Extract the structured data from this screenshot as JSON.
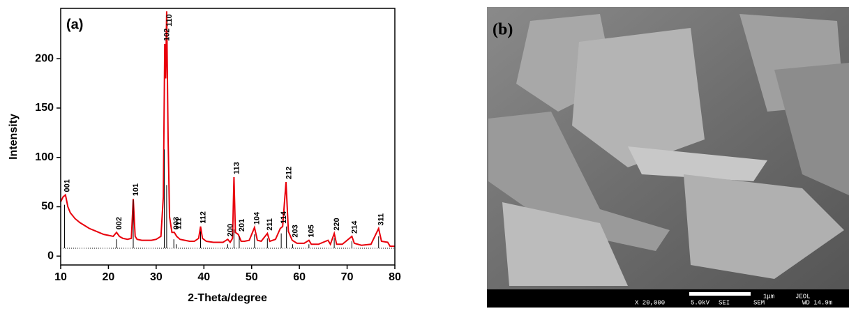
{
  "chart_data": {
    "type": "line",
    "panel_label": "(a)",
    "xlabel": "2-Theta/degree",
    "ylabel": "Intensity",
    "xlim": [
      10,
      80
    ],
    "ylim": [
      -9,
      251
    ],
    "xticks": [
      10,
      20,
      30,
      40,
      50,
      60,
      70,
      80
    ],
    "yticks": [
      0,
      50,
      100,
      150,
      200
    ],
    "x": [
      10,
      10.5,
      11,
      11.5,
      12,
      13,
      14,
      15,
      16,
      17,
      18,
      19,
      20,
      21,
      21.7,
      22.3,
      23,
      24,
      24.8,
      25.2,
      25.6,
      26,
      27,
      28,
      29,
      30,
      31,
      31.5,
      31.8,
      32.0,
      32.2,
      32.5,
      32.8,
      33.3,
      33.8,
      34.3,
      35,
      36,
      37,
      38,
      38.9,
      39.3,
      39.7,
      40.5,
      42,
      43,
      44,
      45,
      45.5,
      46,
      46.3,
      46.6,
      47.2,
      47.8,
      48.5,
      49.5,
      50.6,
      51.2,
      52,
      53.3,
      53.8,
      55,
      56,
      56.5,
      57.2,
      57.7,
      58.5,
      59.5,
      61,
      62,
      62.5,
      64,
      66,
      66.5,
      67.3,
      67.8,
      69,
      71,
      71.5,
      73,
      75,
      76.6,
      77.2,
      78.5,
      79,
      80
    ],
    "series": [
      {
        "color": "#e8000b",
        "values": [
          55,
          60,
          62,
          50,
          44,
          38,
          34,
          31,
          28,
          26,
          24,
          22,
          21,
          20,
          24,
          20,
          18,
          17,
          18,
          58,
          20,
          17,
          16,
          16,
          16,
          17,
          20,
          60,
          215,
          180,
          248,
          120,
          40,
          24,
          24,
          20,
          17,
          16,
          15,
          15,
          18,
          30,
          18,
          15,
          14,
          14,
          14,
          17,
          14,
          18,
          80,
          24,
          22,
          15,
          15,
          16,
          29,
          16,
          15,
          23,
          15,
          17,
          28,
          30,
          75,
          25,
          16,
          13,
          13,
          16,
          12,
          12,
          16,
          12,
          23,
          12,
          12,
          20,
          13,
          11,
          12,
          28,
          15,
          14,
          10,
          10
        ]
      }
    ],
    "reference": {
      "color": "#000000",
      "baseline": 8,
      "labels": [
        "001",
        "002",
        "101",
        "102",
        "110",
        "003",
        "111",
        "112",
        "200",
        "113",
        "201",
        "104",
        "211",
        "114",
        "212",
        "203",
        "105",
        "220",
        "214",
        "311"
      ],
      "x": [
        10.8,
        21.7,
        25.2,
        31.7,
        32.2,
        33.7,
        34.2,
        39.3,
        45,
        46.3,
        47.4,
        50.6,
        53.3,
        56.2,
        57.3,
        58.6,
        62,
        67.3,
        71,
        76.6
      ],
      "values": [
        52,
        17,
        57,
        108,
        72,
        17,
        12,
        25,
        12,
        27,
        20,
        22,
        18,
        23,
        30,
        12,
        12,
        18,
        15,
        20
      ]
    }
  },
  "image_panel": {
    "label": "(b)",
    "magnification": "X 20,000",
    "voltage": "5.0kV",
    "mode": "SEI",
    "instrument": "SEM",
    "scale": "1μm",
    "maker": "JEOL",
    "working_distance": "WD 14.9m"
  }
}
